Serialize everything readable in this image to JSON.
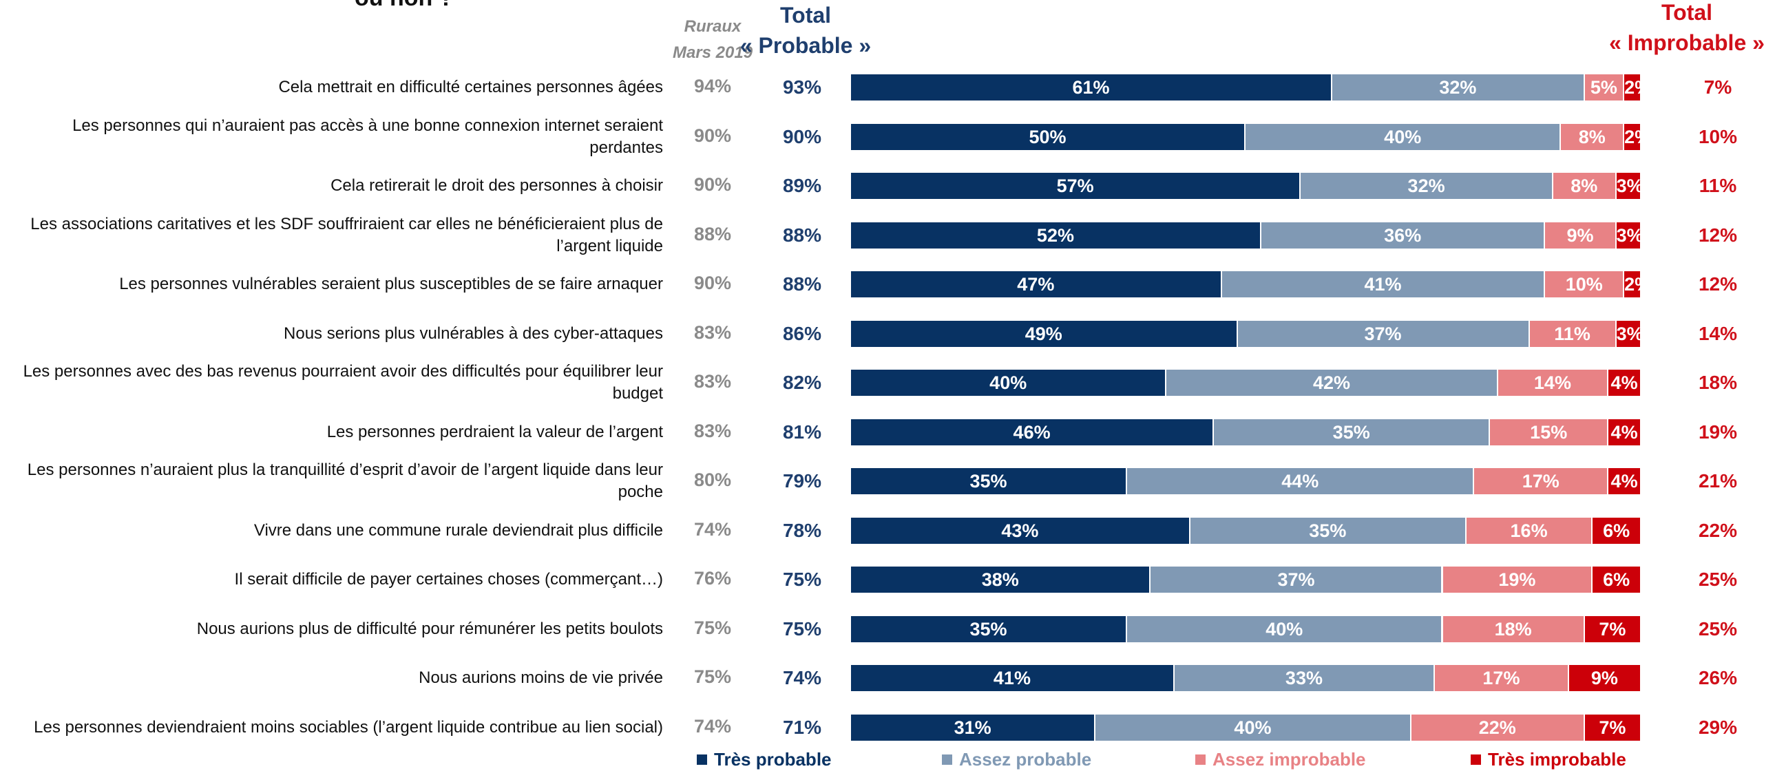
{
  "title_fragment": "ou non ?",
  "headers": {
    "rural_line1": "Ruraux",
    "rural_line2": "Mars 2019",
    "total_prob_line1": "Total",
    "total_prob_line2": "« Probable »",
    "total_improb_line1": "Total",
    "total_improb_line2": "« Improbable »"
  },
  "colors": {
    "tres_probable": "#083263",
    "assez_probable": "#8099b4",
    "assez_improbable": "#e88285",
    "tres_improbable": "#cc0009",
    "total_probable_text": "#1f3f6e",
    "total_improbable_text": "#d0101a",
    "rural_text": "#8a8a8a"
  },
  "legend": [
    {
      "label": "Très probable",
      "color": "#083263"
    },
    {
      "label": "Assez probable",
      "color": "#8099b4"
    },
    {
      "label": "Assez improbable",
      "color": "#e88285"
    },
    {
      "label": "Très improbable",
      "color": "#cc0009"
    }
  ],
  "chart_data": {
    "type": "bar",
    "orientation": "horizontal",
    "stacked": true,
    "unit": "%",
    "series": [
      {
        "name": "Très probable",
        "values": [
          61,
          50,
          57,
          52,
          47,
          49,
          40,
          46,
          35,
          43,
          38,
          35,
          41,
          31
        ]
      },
      {
        "name": "Assez probable",
        "values": [
          32,
          40,
          32,
          36,
          41,
          37,
          42,
          35,
          44,
          35,
          37,
          40,
          33,
          40
        ]
      },
      {
        "name": "Assez improbable",
        "values": [
          5,
          8,
          8,
          9,
          10,
          11,
          14,
          15,
          17,
          16,
          19,
          18,
          17,
          22
        ]
      },
      {
        "name": "Très improbable",
        "values": [
          2,
          2,
          3,
          3,
          2,
          3,
          4,
          4,
          4,
          6,
          6,
          7,
          9,
          7
        ]
      }
    ],
    "rows": [
      {
        "label": "Cela mettrait en difficulté certaines personnes âgées",
        "rural": "94%",
        "total_probable": "93%",
        "total_improbable": "7%",
        "values": [
          61,
          32,
          5,
          2
        ],
        "labels": [
          "61%",
          "32%",
          "5%",
          "2%"
        ]
      },
      {
        "label": "Les personnes qui n’auraient pas accès à une bonne connexion internet seraient perdantes",
        "rural": "90%",
        "total_probable": "90%",
        "total_improbable": "10%",
        "values": [
          50,
          40,
          8,
          2
        ],
        "labels": [
          "50%",
          "40%",
          "8%",
          "2%"
        ]
      },
      {
        "label": "Cela retirerait le droit des personnes à choisir",
        "rural": "90%",
        "total_probable": "89%",
        "total_improbable": "11%",
        "values": [
          57,
          32,
          8,
          3
        ],
        "labels": [
          "57%",
          "32%",
          "8%",
          "3%"
        ]
      },
      {
        "label": "Les associations caritatives et les SDF souffriraient car elles ne bénéficieraient plus de l’argent liquide",
        "rural": "88%",
        "total_probable": "88%",
        "total_improbable": "12%",
        "values": [
          52,
          36,
          9,
          3
        ],
        "labels": [
          "52%",
          "36%",
          "9%",
          "3%"
        ]
      },
      {
        "label": "Les personnes vulnérables seraient plus susceptibles de se faire arnaquer",
        "rural": "90%",
        "total_probable": "88%",
        "total_improbable": "12%",
        "values": [
          47,
          41,
          10,
          2
        ],
        "labels": [
          "47%",
          "41%",
          "10%",
          "2%"
        ]
      },
      {
        "label": "Nous serions plus vulnérables à des cyber-attaques",
        "rural": "83%",
        "total_probable": "86%",
        "total_improbable": "14%",
        "values": [
          49,
          37,
          11,
          3
        ],
        "labels": [
          "49%",
          "37%",
          "11%",
          "3%"
        ]
      },
      {
        "label": "Les personnes avec des bas revenus pourraient avoir des difficultés pour équilibrer leur budget",
        "rural": "83%",
        "total_probable": "82%",
        "total_improbable": "18%",
        "values": [
          40,
          42,
          14,
          4
        ],
        "labels": [
          "40%",
          "42%",
          "14%",
          "4%"
        ]
      },
      {
        "label": "Les personnes perdraient la valeur de l’argent",
        "rural": "83%",
        "total_probable": "81%",
        "total_improbable": "19%",
        "values": [
          46,
          35,
          15,
          4
        ],
        "labels": [
          "46%",
          "35%",
          "15%",
          "4%"
        ]
      },
      {
        "label": "Les personnes n’auraient plus la tranquillité d’esprit d’avoir de l’argent liquide dans leur poche",
        "rural": "80%",
        "total_probable": "79%",
        "total_improbable": "21%",
        "values": [
          35,
          44,
          17,
          4
        ],
        "labels": [
          "35%",
          "44%",
          "17%",
          "4%"
        ]
      },
      {
        "label": "Vivre dans une commune rurale deviendrait plus difficile",
        "rural": "74%",
        "total_probable": "78%",
        "total_improbable": "22%",
        "values": [
          43,
          35,
          16,
          6
        ],
        "labels": [
          "43%",
          "35%",
          "16%",
          "6%"
        ]
      },
      {
        "label": "Il serait difficile de payer certaines choses (commerçant…)",
        "rural": "76%",
        "total_probable": "75%",
        "total_improbable": "25%",
        "values": [
          38,
          37,
          19,
          6
        ],
        "labels": [
          "38%",
          "37%",
          "19%",
          "6%"
        ]
      },
      {
        "label": "Nous aurions plus de difficulté pour rémunérer les petits boulots",
        "rural": "75%",
        "total_probable": "75%",
        "total_improbable": "25%",
        "values": [
          35,
          40,
          18,
          7
        ],
        "labels": [
          "35%",
          "40%",
          "18%",
          "7%"
        ]
      },
      {
        "label": "Nous aurions moins de vie privée",
        "rural": "75%",
        "total_probable": "74%",
        "total_improbable": "26%",
        "values": [
          41,
          33,
          17,
          9
        ],
        "labels": [
          "41%",
          "33%",
          "17%",
          "9%"
        ]
      },
      {
        "label": "Les personnes deviendraient moins sociables (l’argent liquide contribue au lien social)",
        "rural": "74%",
        "total_probable": "71%",
        "total_improbable": "29%",
        "values": [
          31,
          40,
          22,
          7
        ],
        "labels": [
          "31%",
          "40%",
          "22%",
          "7%"
        ]
      }
    ]
  }
}
